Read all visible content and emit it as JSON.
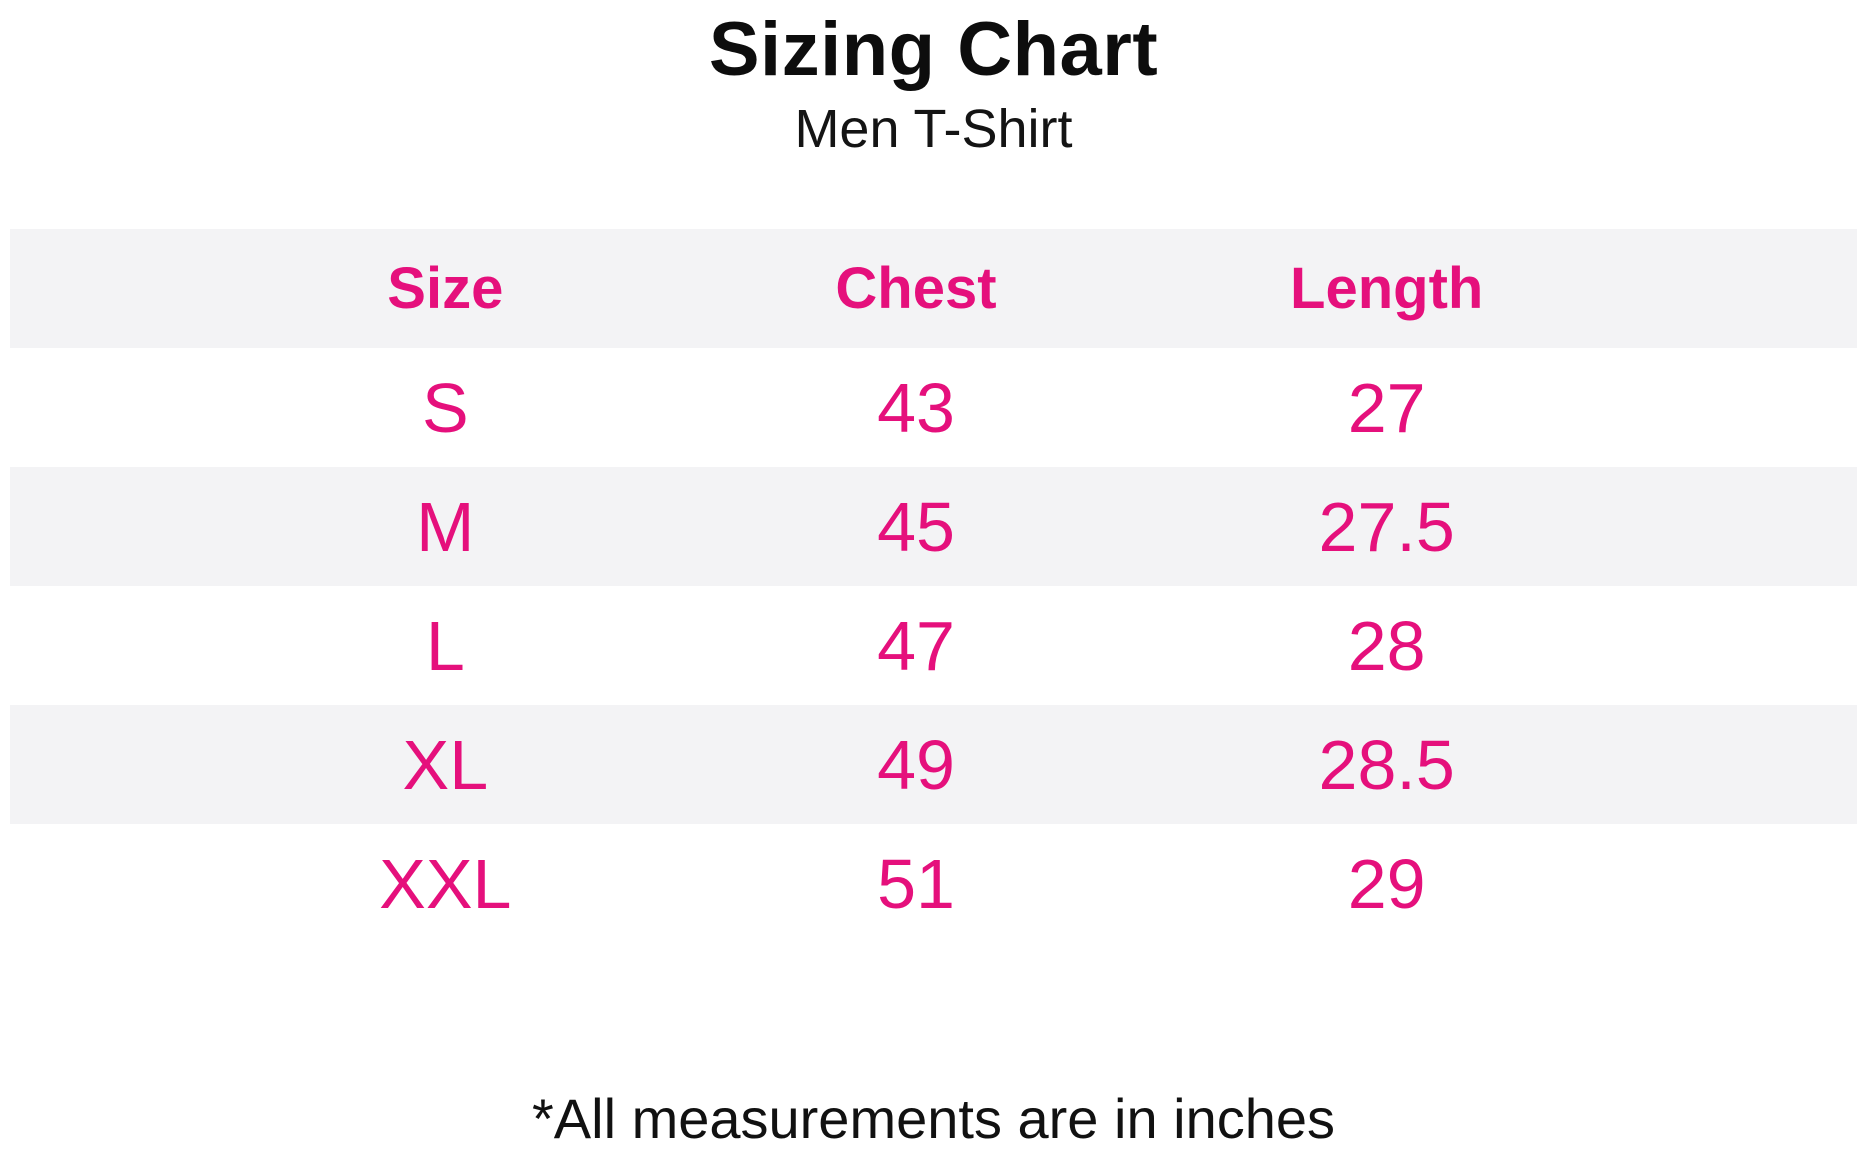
{
  "header": {
    "title": "Sizing Chart",
    "subtitle": "Men T-Shirt"
  },
  "footer": {
    "note": "*All measurements are in inches"
  },
  "colors": {
    "accent_pink": "#E5107C",
    "stripe_gray": "#F3F3F5",
    "text_black": "#111111",
    "background": "#FFFFFF"
  },
  "chart_data": {
    "type": "table",
    "title": "Sizing Chart",
    "subtitle": "Men T-Shirt",
    "columns": [
      "Size",
      "Chest",
      "Length"
    ],
    "rows": [
      {
        "size": "S",
        "chest": "43",
        "length": "27"
      },
      {
        "size": "M",
        "chest": "45",
        "length": "27.5"
      },
      {
        "size": "L",
        "chest": "47",
        "length": "28"
      },
      {
        "size": "XL",
        "chest": "49",
        "length": "28.5"
      },
      {
        "size": "XXL",
        "chest": "51",
        "length": "29"
      }
    ],
    "units": "inches",
    "note": "*All measurements are in inches",
    "layout_hints": {
      "striped_rows": true,
      "stripe_pattern": "header, M and XL rows shaded light gray",
      "text_alignment": "center",
      "grid": "none"
    }
  }
}
